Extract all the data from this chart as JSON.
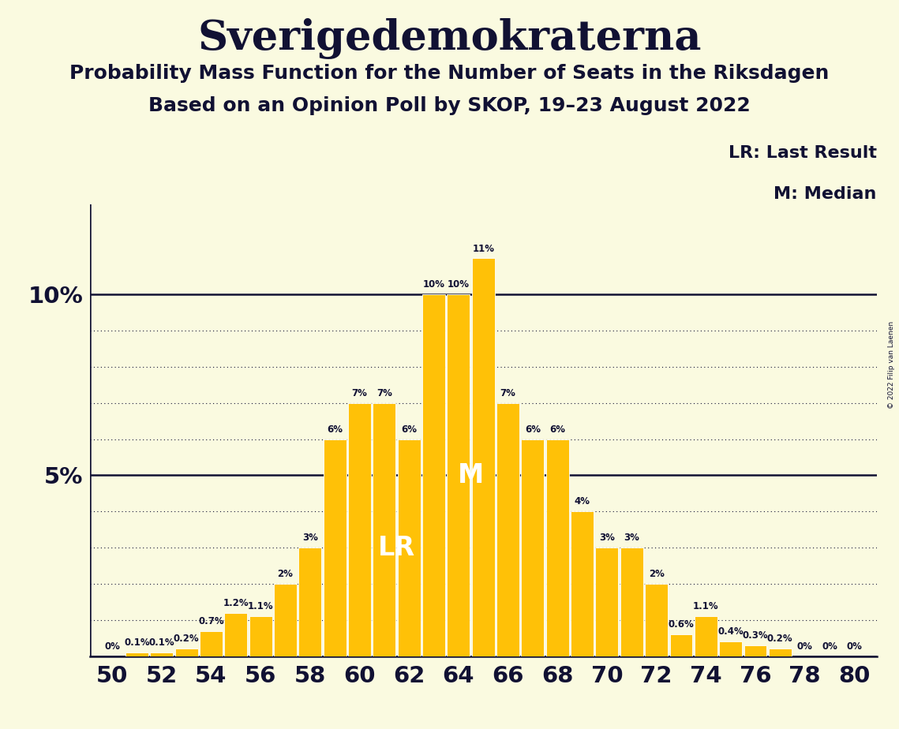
{
  "title": "Sverigedemokraterna",
  "subtitle1": "Probability Mass Function for the Number of Seats in the Riksdagen",
  "subtitle2": "Based on an Opinion Poll by SKOP, 19–23 August 2022",
  "copyright": "© 2022 Filip van Laenen",
  "legend_lr": "LR: Last Result",
  "legend_m": "M: Median",
  "lr_label": "LR",
  "m_label": "M",
  "lr_seat": 62,
  "m_seat": 64,
  "seats": [
    50,
    51,
    52,
    53,
    54,
    55,
    56,
    57,
    58,
    59,
    60,
    61,
    62,
    63,
    64,
    65,
    66,
    67,
    68,
    69,
    70,
    71,
    72,
    73,
    74,
    75,
    76,
    77,
    78,
    79,
    80
  ],
  "values": [
    0.0,
    0.1,
    0.1,
    0.2,
    0.7,
    1.2,
    1.1,
    2.0,
    3.0,
    6.0,
    7.0,
    7.0,
    6.0,
    10.0,
    10.0,
    11.0,
    7.0,
    6.0,
    6.0,
    4.0,
    3.0,
    3.0,
    2.0,
    0.6,
    1.1,
    0.4,
    0.3,
    0.2,
    0.0,
    0.0,
    0.0
  ],
  "bar_color": "#FFC107",
  "bg_color": "#FAFAE0",
  "text_color": "#111133",
  "title_fontsize": 38,
  "subtitle_fontsize": 18,
  "ylim": [
    0,
    12.5
  ],
  "xlim": [
    49.1,
    80.9
  ]
}
